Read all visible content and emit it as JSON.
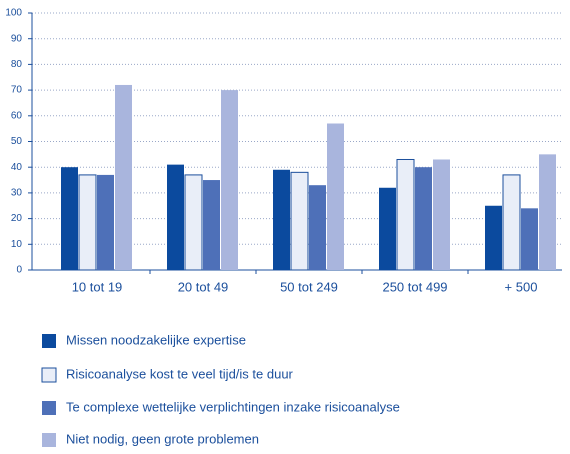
{
  "chart_data": {
    "type": "bar",
    "categories": [
      "10 tot 19",
      "20 tot 49",
      "50 tot 249",
      "250 tot 499",
      "+ 500"
    ],
    "series": [
      {
        "name": "Missen noodzakelijke expertise",
        "color": "#0b4a9e",
        "values": [
          40,
          41,
          39,
          32,
          25
        ]
      },
      {
        "name": "Risicoanalyse kost te veel tijd/is te duur",
        "color": "#e9eef8",
        "values": [
          37,
          37,
          38,
          43,
          37
        ]
      },
      {
        "name": "Te complexe wettelijke verplichtingen inzake risicoanalyse",
        "color": "#4e70b8",
        "values": [
          37,
          35,
          33,
          40,
          24
        ]
      },
      {
        "name": "Niet nodig, geen grote problemen",
        "color": "#a9b5dd",
        "values": [
          72,
          70,
          57,
          43,
          45
        ]
      }
    ],
    "ylim": [
      0,
      100
    ],
    "yticks": [
      0,
      10,
      20,
      30,
      40,
      50,
      60,
      70,
      80,
      90,
      100
    ],
    "grid": true
  }
}
